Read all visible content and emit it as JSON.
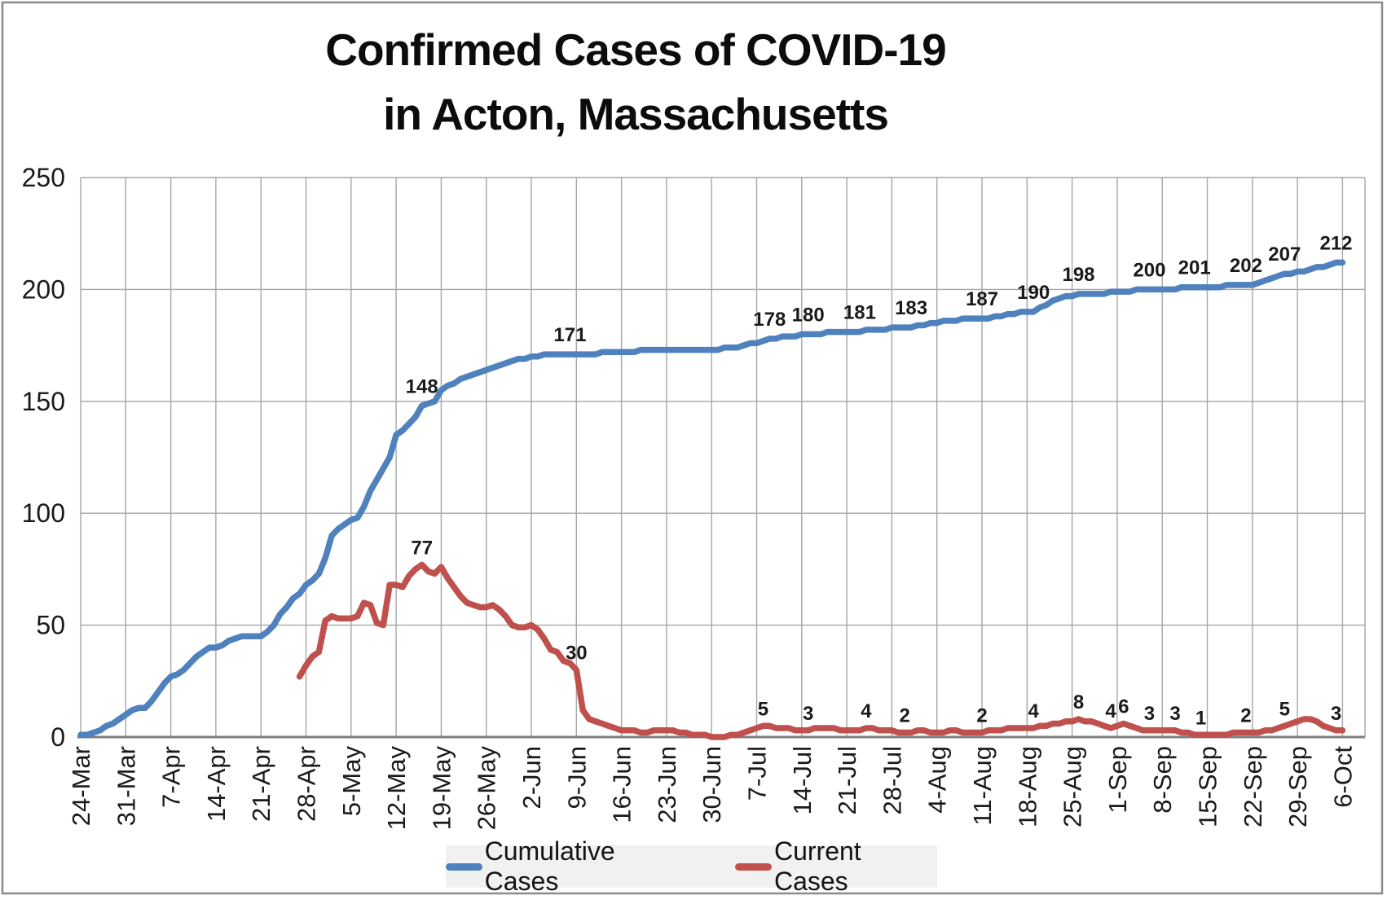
{
  "title": {
    "line1": "Confirmed Cases of COVID-19",
    "line2": "in Acton, Massachusetts"
  },
  "legend": {
    "items": [
      {
        "label": "Cumulative Cases",
        "color": "#4F81BD"
      },
      {
        "label": "Current Cases",
        "color": "#C0504D"
      }
    ]
  },
  "chart_data": {
    "type": "line",
    "title": "Confirmed Cases of COVID-19 in Acton, Massachusetts",
    "grid": true,
    "legend_position": "bottom",
    "ylim": [
      0,
      250
    ],
    "y_ticks": [
      0,
      50,
      100,
      150,
      200,
      250
    ],
    "x_tick_interval_days": 7,
    "x_tick_labels": [
      "24-Mar",
      "31-Mar",
      "7-Apr",
      "14-Apr",
      "21-Apr",
      "28-Apr",
      "5-May",
      "12-May",
      "19-May",
      "26-May",
      "2-Jun",
      "9-Jun",
      "16-Jun",
      "23-Jun",
      "30-Jun",
      "7-Jul",
      "14-Jul",
      "21-Jul",
      "28-Jul",
      "4-Aug",
      "11-Aug",
      "18-Aug",
      "25-Aug",
      "1-Sep",
      "8-Sep",
      "15-Sep",
      "22-Sep",
      "29-Sep",
      "6-Oct"
    ],
    "series": [
      {
        "name": "Cumulative Cases",
        "color": "#4F81BD",
        "start_day": 0,
        "values": [
          1,
          1,
          2,
          3,
          5,
          6,
          8,
          10,
          12,
          13,
          13,
          16,
          20,
          24,
          27,
          28,
          30,
          33,
          36,
          38,
          40,
          40,
          41,
          43,
          44,
          45,
          45,
          45,
          45,
          47,
          50,
          55,
          58,
          62,
          64,
          68,
          70,
          73,
          80,
          90,
          93,
          95,
          97,
          98,
          103,
          110,
          115,
          120,
          125,
          135,
          137,
          140,
          143,
          148,
          149,
          150,
          155,
          157,
          158,
          160,
          161,
          162,
          163,
          164,
          165,
          166,
          167,
          168,
          169,
          169,
          170,
          170,
          171,
          171,
          171,
          171,
          171,
          171,
          171,
          171,
          171,
          172,
          172,
          172,
          172,
          172,
          172,
          173,
          173,
          173,
          173,
          173,
          173,
          173,
          173,
          173,
          173,
          173,
          173,
          173,
          174,
          174,
          174,
          175,
          176,
          176,
          177,
          178,
          178,
          179,
          179,
          179,
          180,
          180,
          180,
          180,
          181,
          181,
          181,
          181,
          181,
          181,
          182,
          182,
          182,
          182,
          183,
          183,
          183,
          183,
          184,
          184,
          185,
          185,
          186,
          186,
          186,
          187,
          187,
          187,
          187,
          187,
          188,
          188,
          189,
          189,
          190,
          190,
          190,
          192,
          193,
          195,
          196,
          197,
          197,
          198,
          198,
          198,
          198,
          198,
          199,
          199,
          199,
          199,
          200,
          200,
          200,
          200,
          200,
          200,
          200,
          201,
          201,
          201,
          201,
          201,
          201,
          201,
          202,
          202,
          202,
          202,
          202,
          203,
          204,
          205,
          206,
          207,
          207,
          208,
          208,
          209,
          210,
          210,
          211,
          212,
          212
        ],
        "data_labels": [
          {
            "day": 53,
            "value": 148
          },
          {
            "day": 76,
            "value": 171
          },
          {
            "day": 107,
            "value": 178
          },
          {
            "day": 113,
            "value": 180
          },
          {
            "day": 121,
            "value": 181
          },
          {
            "day": 129,
            "value": 183
          },
          {
            "day": 140,
            "value": 187
          },
          {
            "day": 148,
            "value": 190
          },
          {
            "day": 155,
            "value": 198
          },
          {
            "day": 166,
            "value": 200
          },
          {
            "day": 173,
            "value": 201
          },
          {
            "day": 181,
            "value": 202
          },
          {
            "day": 187,
            "value": 207
          },
          {
            "day": 195,
            "value": 212
          }
        ]
      },
      {
        "name": "Current Cases",
        "color": "#C0504D",
        "start_day": 34,
        "values": [
          27,
          32,
          36,
          38,
          52,
          54,
          53,
          53,
          53,
          54,
          60,
          59,
          51,
          50,
          68,
          68,
          67,
          72,
          75,
          77,
          74,
          73,
          76,
          71,
          67,
          63,
          60,
          59,
          58,
          58,
          59,
          57,
          54,
          50,
          49,
          49,
          50,
          48,
          44,
          39,
          38,
          34,
          33,
          30,
          12,
          8,
          7,
          6,
          5,
          4,
          3,
          3,
          3,
          2,
          2,
          3,
          3,
          3,
          3,
          2,
          2,
          1,
          1,
          1,
          0,
          0,
          0,
          1,
          1,
          2,
          3,
          4,
          5,
          5,
          4,
          4,
          4,
          3,
          3,
          3,
          4,
          4,
          4,
          4,
          3,
          3,
          3,
          3,
          4,
          4,
          3,
          3,
          3,
          2,
          2,
          2,
          3,
          3,
          2,
          2,
          2,
          3,
          3,
          2,
          2,
          2,
          2,
          3,
          3,
          3,
          4,
          4,
          4,
          4,
          4,
          5,
          5,
          6,
          6,
          7,
          7,
          8,
          7,
          7,
          6,
          5,
          4,
          5,
          6,
          5,
          4,
          3,
          3,
          3,
          3,
          3,
          3,
          2,
          2,
          1,
          1,
          1,
          1,
          1,
          1,
          2,
          2,
          2,
          2,
          2,
          3,
          3,
          4,
          5,
          6,
          7,
          8,
          8,
          7,
          5,
          4,
          3,
          3
        ],
        "data_labels": [
          {
            "day": 53,
            "value": 77
          },
          {
            "day": 77,
            "value": 30
          },
          {
            "day": 106,
            "value": 5
          },
          {
            "day": 113,
            "value": 3
          },
          {
            "day": 122,
            "value": 4
          },
          {
            "day": 128,
            "value": 2
          },
          {
            "day": 140,
            "value": 2
          },
          {
            "day": 148,
            "value": 4
          },
          {
            "day": 155,
            "value": 8
          },
          {
            "day": 160,
            "value": 4
          },
          {
            "day": 162,
            "value": 6
          },
          {
            "day": 166,
            "value": 3
          },
          {
            "day": 170,
            "value": 3
          },
          {
            "day": 174,
            "value": 1
          },
          {
            "day": 181,
            "value": 2
          },
          {
            "day": 187,
            "value": 5
          },
          {
            "day": 195,
            "value": 3
          }
        ]
      }
    ]
  }
}
